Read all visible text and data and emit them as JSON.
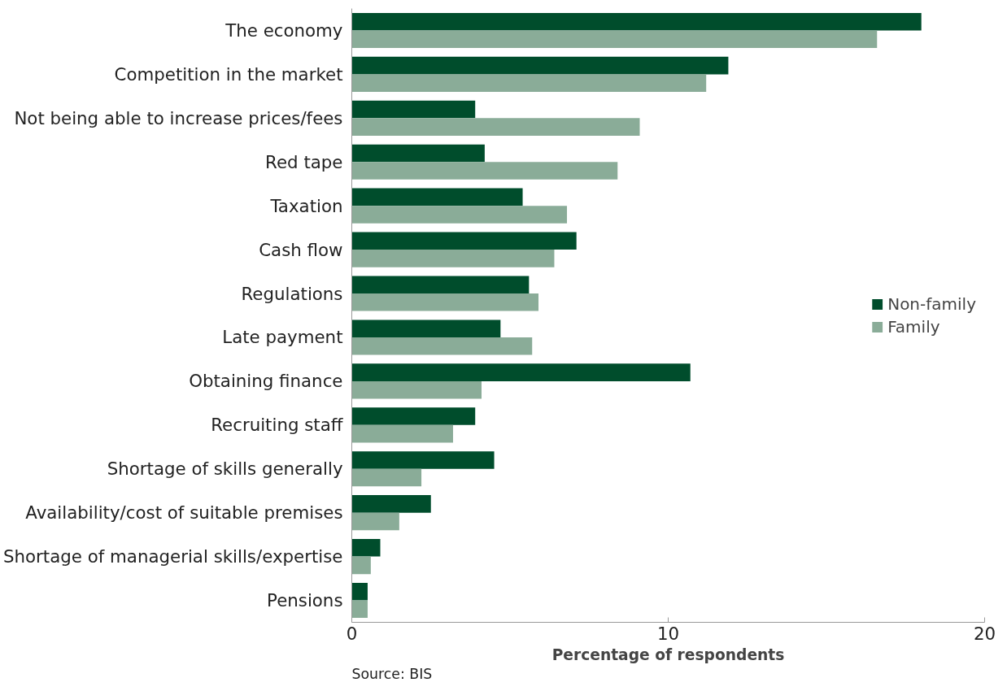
{
  "chart_data": {
    "type": "bar",
    "orientation": "horizontal",
    "xlabel": "Percentage of respondents",
    "categories": [
      "The economy",
      "Competition in the market",
      "Not being able to increase prices/fees",
      "Red tape",
      "Taxation",
      "Cash flow",
      "Regulations",
      "Late payment",
      "Obtaining finance",
      "Recruiting staff",
      "Shortage of skills generally",
      "Availability/cost of suitable premises",
      "Shortage of managerial skills/expertise",
      "Pensions"
    ],
    "series": [
      {
        "name": "Non-family",
        "color": "#004d2c",
        "values": [
          18.0,
          11.9,
          3.9,
          4.2,
          5.4,
          7.1,
          5.6,
          4.7,
          10.7,
          3.9,
          4.5,
          2.5,
          0.9,
          0.5
        ]
      },
      {
        "name": "Family",
        "color": "#8aac98",
        "values": [
          16.6,
          11.2,
          9.1,
          8.4,
          6.8,
          6.4,
          5.9,
          5.7,
          4.1,
          3.2,
          2.2,
          1.5,
          0.6,
          0.5
        ]
      }
    ],
    "xlim": [
      0,
      20
    ],
    "xticks": [
      0,
      10,
      20
    ],
    "legend": "right",
    "grid": false,
    "annotations": [
      "Source: BIS"
    ]
  }
}
